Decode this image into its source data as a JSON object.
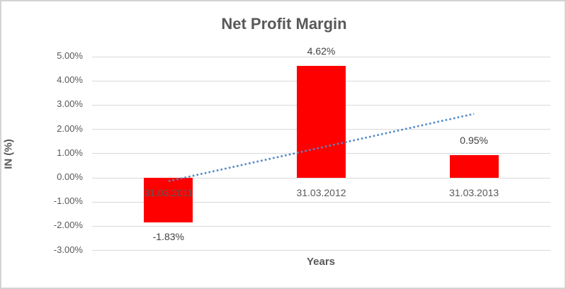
{
  "window": {
    "background_color": "#FFFFFF",
    "border_color": "#D3D3D3"
  },
  "chart_data": {
    "type": "bar",
    "title": "Net Profit Margin",
    "xlabel": "Years",
    "ylabel": "IN (%)",
    "categories": [
      "31.03.2011",
      "31.03.2012",
      "31.03.2013"
    ],
    "values": [
      -1.83,
      4.62,
      0.95
    ],
    "data_labels": [
      "-1.83%",
      "4.62%",
      "0.95%"
    ],
    "series_name": "Net Profit Margin",
    "ylim": [
      -3,
      5
    ],
    "ytick_step": 1,
    "ytick_labels": [
      "5.00%",
      "4.00%",
      "3.00%",
      "2.00%",
      "1.00%",
      "0.00%",
      "-1.00%",
      "-2.00%",
      "-3.00%"
    ],
    "grid": true,
    "legend": false,
    "bar_color": "#FF0000",
    "gridline_color": "#D9D9D9",
    "axis_text_color": "#595959",
    "data_label_color": "#404040",
    "trendline": {
      "type": "linear",
      "style": "dotted",
      "color": "#5089C8",
      "start_value": -0.14,
      "end_value": 2.64
    }
  }
}
